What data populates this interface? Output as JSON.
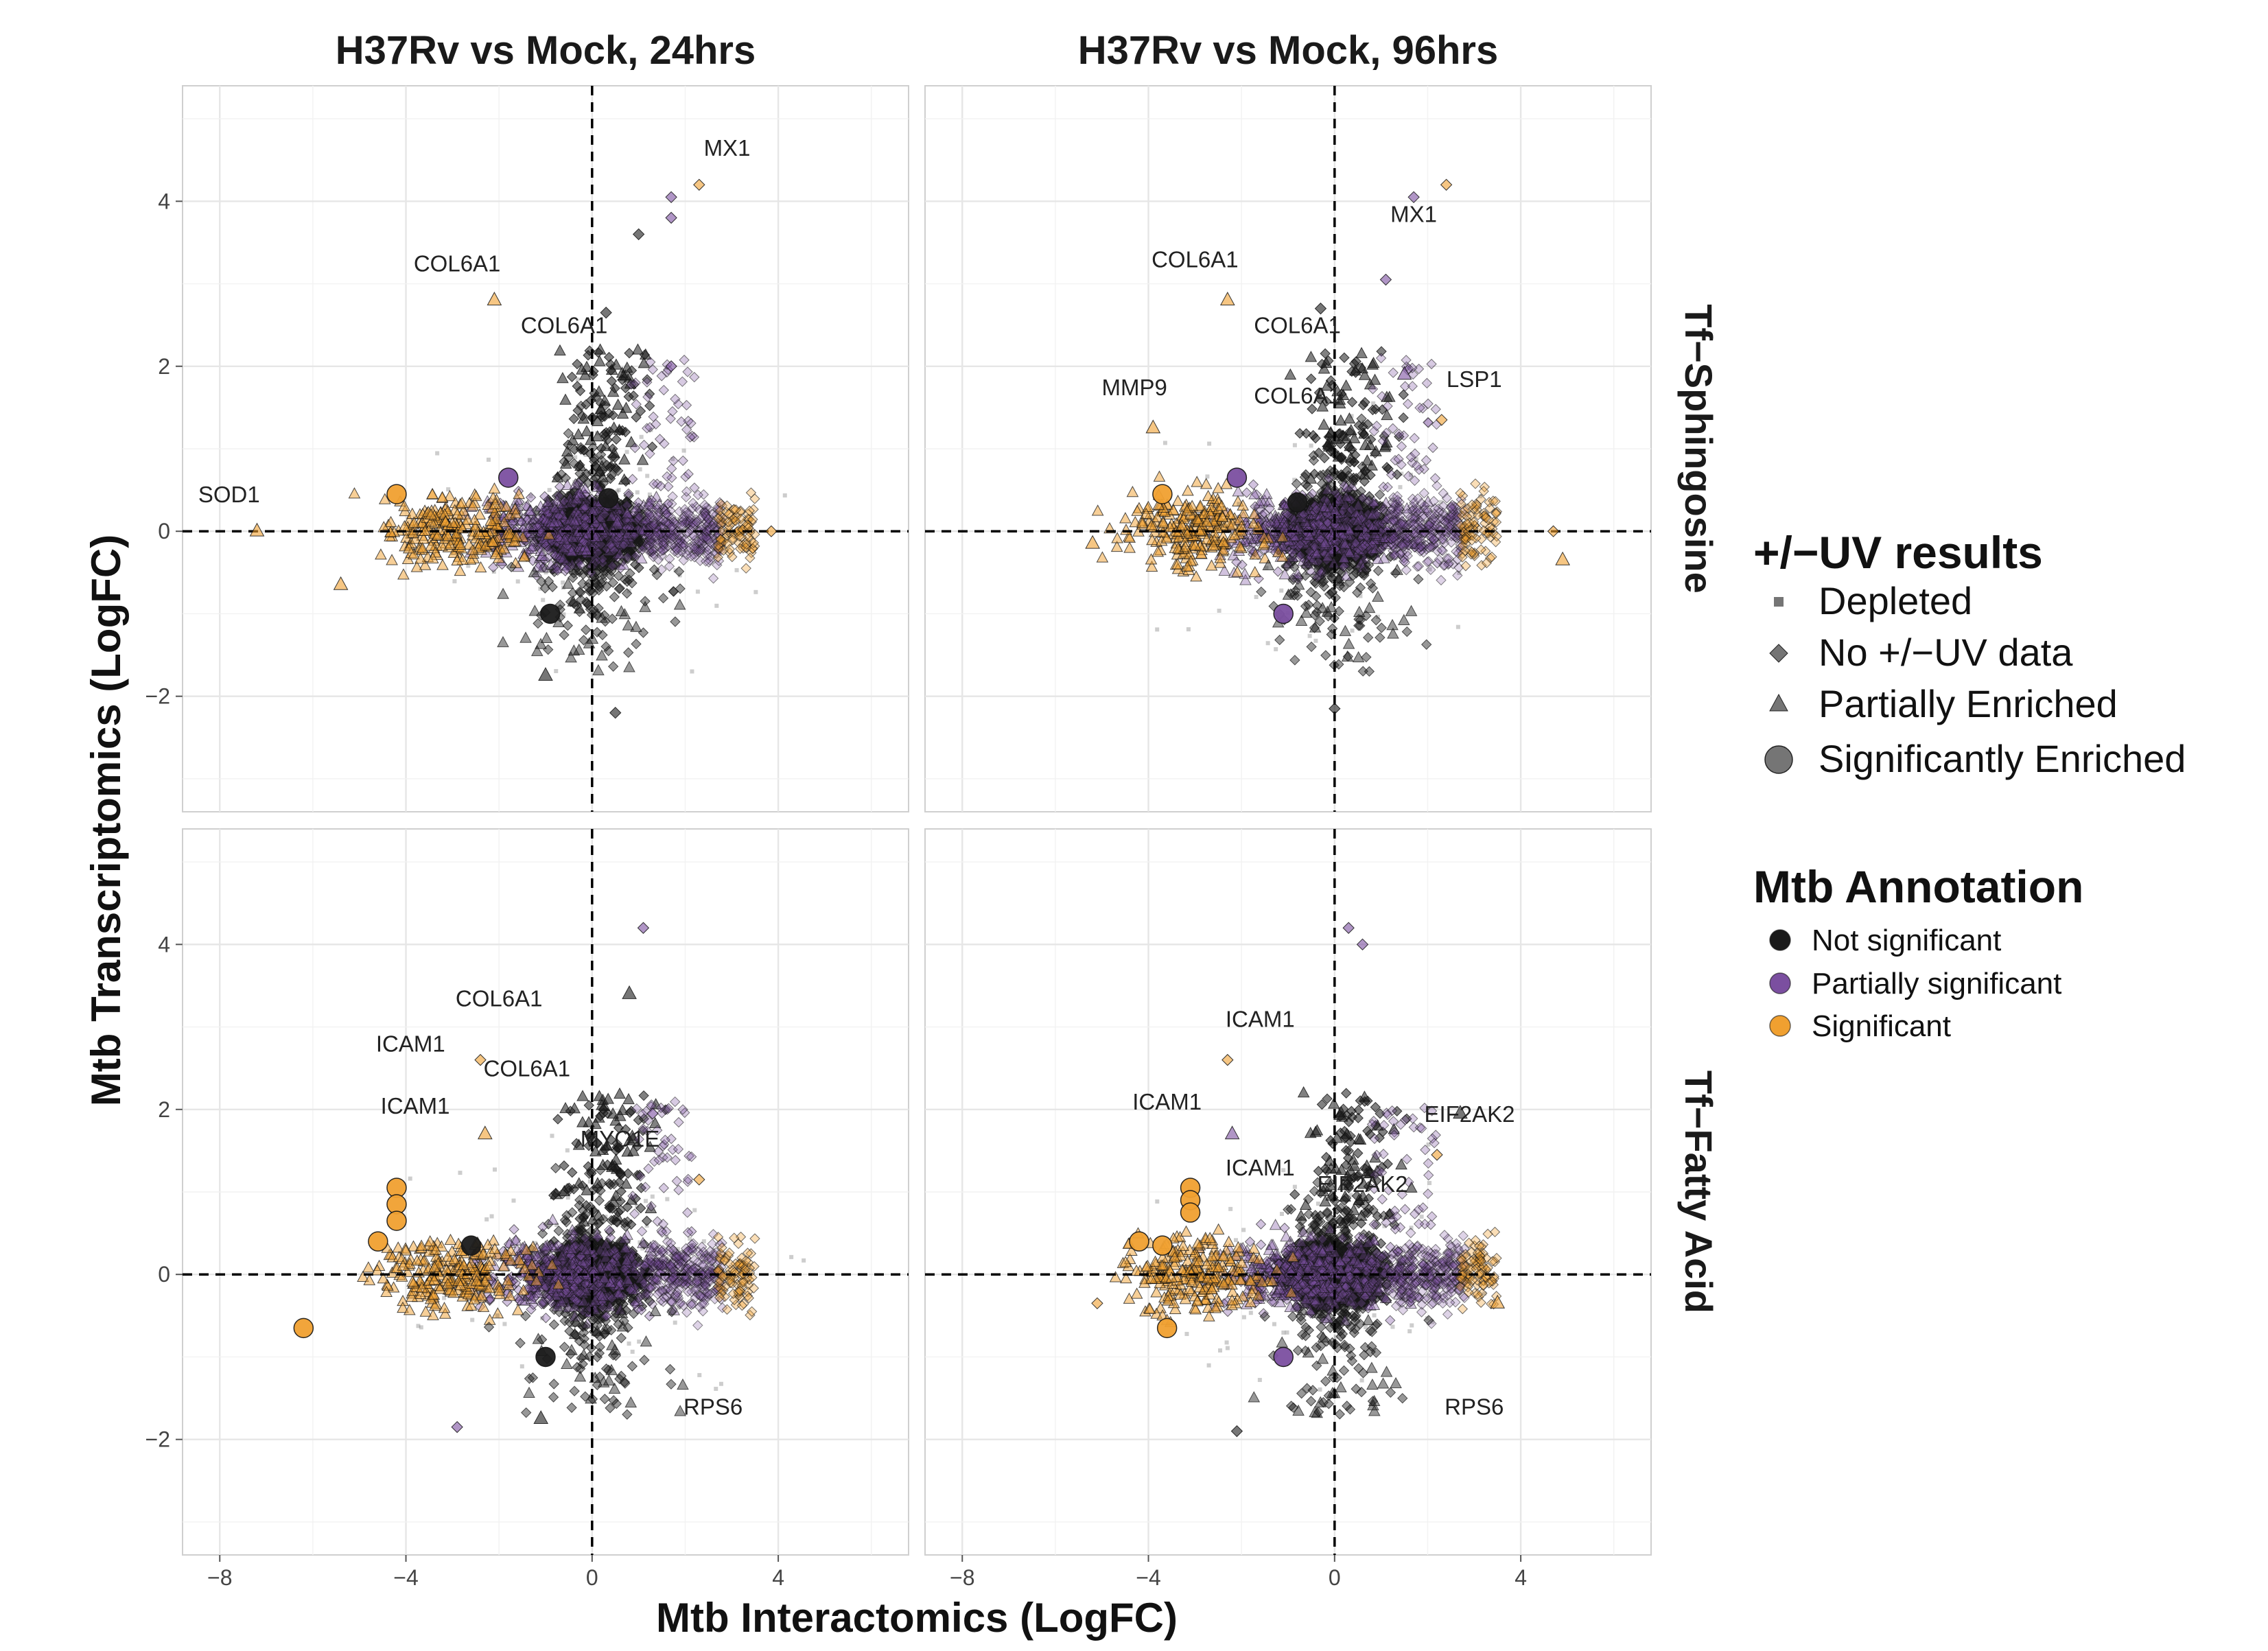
{
  "chart_data": {
    "type": "scatter",
    "xlabel": "Mtb Interactomics (LogFC)",
    "ylabel": "Mtb Transcriptomics (LogFC)",
    "xlim": [
      -8.8,
      6.8
    ],
    "ylim": [
      -3.4,
      5.4
    ],
    "x_ticks": [
      -8,
      -4,
      0,
      4
    ],
    "y_ticks": [
      -2,
      0,
      2,
      4
    ],
    "x_tick_labels": [
      "−8",
      "−4",
      "0",
      "4"
    ],
    "y_tick_labels": [
      "−2",
      "0",
      "2",
      "4"
    ],
    "grid": true,
    "reference_lines": {
      "x": 0,
      "y": 0,
      "style": "dashed"
    },
    "column_facets": [
      "H37Rv vs Mock, 24hrs",
      "H37Rv vs Mock, 96hrs"
    ],
    "row_facets": [
      "Tf−Sphingosine",
      "Tf−Fatty Acid"
    ],
    "legend_placement": "right",
    "colors": {
      "not_significant": "#1a1a1a",
      "partially_significant": "#7b4fa0",
      "significant": "#f0a030"
    },
    "legends": [
      {
        "title": "+/−UV results",
        "items": [
          {
            "label": "Depleted",
            "shape": "square"
          },
          {
            "label": "No +/−UV data",
            "shape": "diamond"
          },
          {
            "label": "Partially Enriched",
            "shape": "triangle"
          },
          {
            "label": "Significantly Enriched",
            "shape": "circle"
          }
        ]
      },
      {
        "title": "Mtb Annotation",
        "items": [
          {
            "label": "Not significant",
            "color": "#1a1a1a"
          },
          {
            "label": "Partially significant",
            "color": "#7b4fa0"
          },
          {
            "label": "Significant",
            "color": "#f0a030"
          }
        ]
      }
    ],
    "panels": [
      {
        "column": 0,
        "row": 0,
        "labels": [
          {
            "text": "MX1",
            "x": 2.9,
            "y": 4.55
          },
          {
            "text": "COL6A1",
            "x": -2.9,
            "y": 3.15
          },
          {
            "text": "COL6A1",
            "x": -0.6,
            "y": 2.4
          },
          {
            "text": "SOD1",
            "x": -7.8,
            "y": 0.35
          }
        ],
        "points": [
          {
            "x": 2.3,
            "y": 4.2,
            "shape": "diamond",
            "group": "significant"
          },
          {
            "x": 1.7,
            "y": 4.05,
            "shape": "diamond",
            "group": "partially_significant"
          },
          {
            "x": 1.7,
            "y": 3.8,
            "shape": "diamond",
            "group": "partially_significant"
          },
          {
            "x": 1.0,
            "y": 3.6,
            "shape": "diamond",
            "group": "not_significant"
          },
          {
            "x": -2.1,
            "y": 2.8,
            "shape": "triangle",
            "group": "significant"
          },
          {
            "x": -7.2,
            "y": 0.0,
            "shape": "triangle",
            "group": "significant"
          },
          {
            "x": -4.2,
            "y": 0.45,
            "shape": "circle",
            "group": "significant"
          },
          {
            "x": -1.8,
            "y": 0.65,
            "shape": "circle",
            "group": "partially_significant"
          },
          {
            "x": 0.35,
            "y": 0.4,
            "shape": "circle",
            "group": "not_significant"
          },
          {
            "x": -0.9,
            "y": -1.0,
            "shape": "circle",
            "group": "not_significant"
          },
          {
            "x": 0.5,
            "y": -2.2,
            "shape": "diamond",
            "group": "not_significant"
          },
          {
            "x": -1.0,
            "y": -1.75,
            "shape": "triangle",
            "group": "not_significant"
          },
          {
            "x": -5.4,
            "y": -0.65,
            "shape": "triangle",
            "group": "significant"
          },
          {
            "x": 3.85,
            "y": 0.0,
            "shape": "diamond",
            "group": "significant"
          },
          {
            "x": 1.7,
            "y": 2.0,
            "shape": "diamond",
            "group": "partially_significant"
          },
          {
            "x": 0.3,
            "y": 2.65,
            "shape": "diamond",
            "group": "not_significant"
          }
        ]
      },
      {
        "column": 1,
        "row": 0,
        "labels": [
          {
            "text": "MX1",
            "x": 1.7,
            "y": 3.75
          },
          {
            "text": "COL6A1",
            "x": -3.0,
            "y": 3.2
          },
          {
            "text": "COL6A1",
            "x": -0.8,
            "y": 2.4
          },
          {
            "text": "MMP9",
            "x": -4.3,
            "y": 1.65
          },
          {
            "text": "COL6A1",
            "x": -0.8,
            "y": 1.55
          },
          {
            "text": "LSP1",
            "x": 3.0,
            "y": 1.75
          }
        ],
        "points": [
          {
            "x": 2.4,
            "y": 4.2,
            "shape": "diamond",
            "group": "significant"
          },
          {
            "x": 1.7,
            "y": 4.05,
            "shape": "diamond",
            "group": "partially_significant"
          },
          {
            "x": 1.1,
            "y": 3.05,
            "shape": "diamond",
            "group": "partially_significant"
          },
          {
            "x": -2.3,
            "y": 2.8,
            "shape": "triangle",
            "group": "significant"
          },
          {
            "x": -3.9,
            "y": 1.25,
            "shape": "triangle",
            "group": "significant"
          },
          {
            "x": 1.5,
            "y": 1.9,
            "shape": "triangle",
            "group": "partially_significant"
          },
          {
            "x": 2.3,
            "y": 1.35,
            "shape": "diamond",
            "group": "significant"
          },
          {
            "x": -3.7,
            "y": 0.45,
            "shape": "circle",
            "group": "significant"
          },
          {
            "x": -2.1,
            "y": 0.65,
            "shape": "circle",
            "group": "partially_significant"
          },
          {
            "x": -0.8,
            "y": 0.35,
            "shape": "circle",
            "group": "not_significant"
          },
          {
            "x": -1.1,
            "y": -1.0,
            "shape": "circle",
            "group": "partially_significant"
          },
          {
            "x": 0.0,
            "y": -2.15,
            "shape": "diamond",
            "group": "not_significant"
          },
          {
            "x": 4.7,
            "y": 0.0,
            "shape": "diamond",
            "group": "significant"
          },
          {
            "x": 4.9,
            "y": -0.35,
            "shape": "triangle",
            "group": "significant"
          },
          {
            "x": -5.2,
            "y": -0.15,
            "shape": "triangle",
            "group": "significant"
          },
          {
            "x": -0.3,
            "y": 2.7,
            "shape": "diamond",
            "group": "not_significant"
          }
        ]
      },
      {
        "column": 0,
        "row": 1,
        "labels": [
          {
            "text": "COL6A1",
            "x": -2.0,
            "y": 3.25
          },
          {
            "text": "ICAM1",
            "x": -3.9,
            "y": 2.7
          },
          {
            "text": "COL6A1",
            "x": -1.4,
            "y": 2.4
          },
          {
            "text": "ICAM1",
            "x": -3.8,
            "y": 1.95
          },
          {
            "text": "MYO1E",
            "x": 0.6,
            "y": 1.55
          },
          {
            "text": "RPS6",
            "x": 2.6,
            "y": -1.7
          }
        ],
        "points": [
          {
            "x": 1.1,
            "y": 4.2,
            "shape": "diamond",
            "group": "partially_significant"
          },
          {
            "x": 0.8,
            "y": 3.4,
            "shape": "triangle",
            "group": "not_significant"
          },
          {
            "x": -2.4,
            "y": 2.6,
            "shape": "diamond",
            "group": "significant"
          },
          {
            "x": -2.3,
            "y": 1.7,
            "shape": "triangle",
            "group": "significant"
          },
          {
            "x": -4.2,
            "y": 1.05,
            "shape": "circle",
            "group": "significant"
          },
          {
            "x": -4.2,
            "y": 0.85,
            "shape": "circle",
            "group": "significant"
          },
          {
            "x": -4.2,
            "y": 0.65,
            "shape": "circle",
            "group": "significant"
          },
          {
            "x": -4.6,
            "y": 0.4,
            "shape": "circle",
            "group": "significant"
          },
          {
            "x": -2.6,
            "y": 0.35,
            "shape": "circle",
            "group": "not_significant"
          },
          {
            "x": -6.2,
            "y": -0.65,
            "shape": "circle",
            "group": "significant"
          },
          {
            "x": -1.0,
            "y": -1.0,
            "shape": "circle",
            "group": "not_significant"
          },
          {
            "x": -2.9,
            "y": -1.85,
            "shape": "diamond",
            "group": "partially_significant"
          },
          {
            "x": -1.1,
            "y": -1.75,
            "shape": "triangle",
            "group": "not_significant"
          },
          {
            "x": 2.3,
            "y": 1.15,
            "shape": "diamond",
            "group": "significant"
          },
          {
            "x": 1.3,
            "y": 1.95,
            "shape": "diamond",
            "group": "partially_significant"
          }
        ]
      },
      {
        "column": 1,
        "row": 1,
        "labels": [
          {
            "text": "ICAM1",
            "x": -1.6,
            "y": 3.0
          },
          {
            "text": "ICAM1",
            "x": -3.6,
            "y": 2.0
          },
          {
            "text": "EIF2AK2",
            "x": 2.9,
            "y": 1.85
          },
          {
            "text": "ICAM1",
            "x": -1.6,
            "y": 1.2
          },
          {
            "text": "EIF2AK2",
            "x": 0.6,
            "y": 1.0
          },
          {
            "text": "RPS6",
            "x": 3.0,
            "y": -1.7
          }
        ],
        "points": [
          {
            "x": 0.3,
            "y": 4.2,
            "shape": "diamond",
            "group": "partially_significant"
          },
          {
            "x": 0.6,
            "y": 4.0,
            "shape": "diamond",
            "group": "partially_significant"
          },
          {
            "x": -2.3,
            "y": 2.6,
            "shape": "diamond",
            "group": "significant"
          },
          {
            "x": -2.2,
            "y": 1.7,
            "shape": "triangle",
            "group": "partially_significant"
          },
          {
            "x": 2.7,
            "y": 1.95,
            "shape": "triangle",
            "group": "not_significant"
          },
          {
            "x": -3.1,
            "y": 1.05,
            "shape": "circle",
            "group": "significant"
          },
          {
            "x": -3.1,
            "y": 0.9,
            "shape": "circle",
            "group": "significant"
          },
          {
            "x": -3.1,
            "y": 0.75,
            "shape": "circle",
            "group": "significant"
          },
          {
            "x": -4.2,
            "y": 0.4,
            "shape": "circle",
            "group": "significant"
          },
          {
            "x": -3.7,
            "y": 0.35,
            "shape": "circle",
            "group": "significant"
          },
          {
            "x": -3.6,
            "y": -0.65,
            "shape": "circle",
            "group": "significant"
          },
          {
            "x": -1.1,
            "y": -1.0,
            "shape": "circle",
            "group": "partially_significant"
          },
          {
            "x": -2.1,
            "y": -1.9,
            "shape": "diamond",
            "group": "not_significant"
          },
          {
            "x": 2.2,
            "y": 1.45,
            "shape": "diamond",
            "group": "significant"
          },
          {
            "x": 3.5,
            "y": -0.35,
            "shape": "triangle",
            "group": "significant"
          },
          {
            "x": -5.1,
            "y": -0.35,
            "shape": "diamond",
            "group": "significant"
          }
        ]
      }
    ]
  }
}
